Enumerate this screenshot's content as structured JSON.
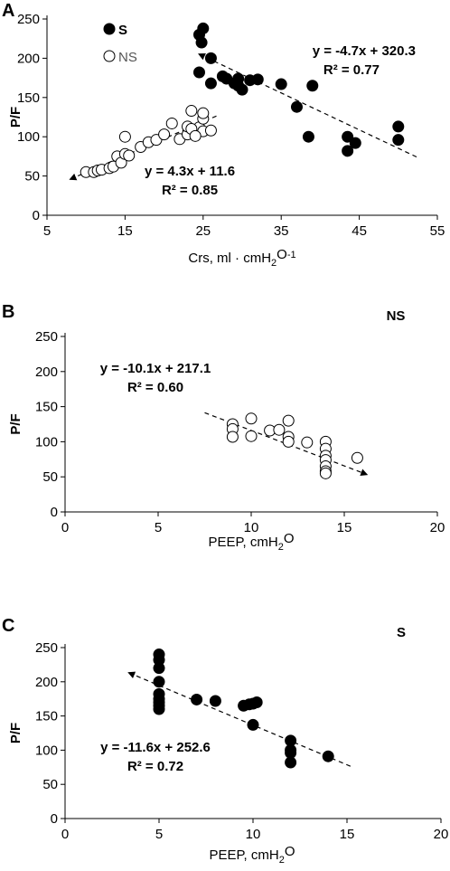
{
  "chart_data": [
    {
      "type": "scatter",
      "panel": "A",
      "ylabel": "P/F",
      "xlabel_parts": [
        "Crs, ml · cmH",
        "2",
        "O",
        "-1"
      ],
      "xlim": [
        5,
        55
      ],
      "ylim": [
        0,
        250
      ],
      "x_ticks": [
        "5",
        "15",
        "25",
        "35",
        "45",
        "55"
      ],
      "y_ticks": [
        "0",
        "50",
        "100",
        "150",
        "200",
        "250"
      ],
      "grid": false,
      "legend": [
        {
          "marker": "filled",
          "label": "S"
        },
        {
          "marker": "open",
          "label": "NS"
        }
      ],
      "legend_position": "top-left",
      "series": [
        {
          "name": "S",
          "marker": "filled",
          "points": [
            [
              25,
              238
            ],
            [
              24.5,
              230
            ],
            [
              24.8,
              220
            ],
            [
              26,
              200
            ],
            [
              24.5,
              182
            ],
            [
              26,
              168
            ],
            [
              27.5,
              177
            ],
            [
              28,
              174
            ],
            [
              29,
              168
            ],
            [
              29.5,
              165
            ],
            [
              30,
              160
            ],
            [
              31,
              172
            ],
            [
              32,
              173
            ],
            [
              35,
              167
            ],
            [
              37,
              138
            ],
            [
              38.5,
              100
            ],
            [
              39,
              165
            ],
            [
              43.5,
              82
            ],
            [
              43.5,
              100
            ],
            [
              44.5,
              92
            ],
            [
              50,
              113
            ],
            [
              50,
              96
            ],
            [
              29.5,
              174
            ]
          ]
        },
        {
          "name": "NS",
          "marker": "open",
          "points": [
            [
              10,
              55
            ],
            [
              11,
              55
            ],
            [
              11.5,
              57
            ],
            [
              12,
              58
            ],
            [
              13,
              60
            ],
            [
              13.5,
              62
            ],
            [
              14,
              75
            ],
            [
              14.5,
              67
            ],
            [
              15,
              78
            ],
            [
              15.5,
              76
            ],
            [
              15,
              100
            ],
            [
              17,
              87
            ],
            [
              18,
              93
            ],
            [
              19,
              96
            ],
            [
              20,
              103
            ],
            [
              21,
              117
            ],
            [
              22,
              97
            ],
            [
              23,
              103
            ],
            [
              23,
              113
            ],
            [
              23.5,
              133
            ],
            [
              24,
              105
            ],
            [
              24.5,
              112
            ],
            [
              25,
              123
            ],
            [
              25,
              107
            ],
            [
              25,
              130
            ],
            [
              26,
              108
            ],
            [
              23.5,
              110
            ],
            [
              24,
              101
            ]
          ]
        }
      ],
      "trendlines": [
        {
          "series": "S",
          "equation": "y = -4.7x + 320.3",
          "r2": "R² = 0.77",
          "slope": -4.7,
          "intercept": 320.3,
          "x_range": [
            24.5,
            52.5
          ]
        },
        {
          "series": "NS",
          "equation": "y = 4.3x + 11.6",
          "r2": "R² = 0.85",
          "slope": 4.3,
          "intercept": 11.6,
          "x_range": [
            8,
            27
          ]
        }
      ]
    },
    {
      "type": "scatter",
      "panel": "B",
      "group": "NS",
      "ylabel": "P/F",
      "xlabel_parts": [
        "PEEP, cmH",
        "2",
        "O",
        ""
      ],
      "xlim": [
        0,
        20
      ],
      "ylim": [
        0,
        250
      ],
      "x_ticks": [
        "0",
        "5",
        "10",
        "15",
        "20"
      ],
      "y_ticks": [
        "0",
        "50",
        "100",
        "150",
        "200",
        "250"
      ],
      "grid": false,
      "series": [
        {
          "name": "NS",
          "marker": "open",
          "points": [
            [
              9,
              125
            ],
            [
              9,
              118
            ],
            [
              9,
              107
            ],
            [
              10,
              133
            ],
            [
              10,
              108
            ],
            [
              11,
              116
            ],
            [
              11.5,
              117
            ],
            [
              12,
              130
            ],
            [
              12,
              107
            ],
            [
              12,
              100
            ],
            [
              13,
              99
            ],
            [
              14,
              100
            ],
            [
              14,
              90
            ],
            [
              14,
              80
            ],
            [
              14,
              74
            ],
            [
              14,
              65
            ],
            [
              14,
              58
            ],
            [
              14,
              55
            ],
            [
              15.7,
              77
            ]
          ]
        }
      ],
      "trendlines": [
        {
          "series": "NS",
          "equation": "y = -10.1x + 217.1",
          "r2": "R² = 0.60",
          "slope": -10.1,
          "intercept": 217.1,
          "x_range": [
            7.5,
            16.2
          ]
        }
      ]
    },
    {
      "type": "scatter",
      "panel": "C",
      "group": "S",
      "ylabel": "P/F",
      "xlabel_parts": [
        "PEEP, cmH",
        "2",
        "O",
        ""
      ],
      "xlim": [
        0,
        20
      ],
      "ylim": [
        0,
        250
      ],
      "x_ticks": [
        "0",
        "5",
        "10",
        "15",
        "20"
      ],
      "y_ticks": [
        "0",
        "50",
        "100",
        "150",
        "200",
        "250"
      ],
      "grid": false,
      "series": [
        {
          "name": "S",
          "marker": "filled",
          "points": [
            [
              5,
              240
            ],
            [
              5,
              232
            ],
            [
              5,
              220
            ],
            [
              5,
              200
            ],
            [
              5,
              182
            ],
            [
              5,
              175
            ],
            [
              5,
              170
            ],
            [
              5,
              165
            ],
            [
              5,
              160
            ],
            [
              7,
              174
            ],
            [
              8,
              172
            ],
            [
              9.5,
              165
            ],
            [
              9.8,
              167
            ],
            [
              10,
              168
            ],
            [
              10.2,
              170
            ],
            [
              10,
              137
            ],
            [
              12,
              114
            ],
            [
              12,
              100
            ],
            [
              12,
              96
            ],
            [
              12,
              82
            ],
            [
              14,
              91
            ]
          ]
        }
      ],
      "trendlines": [
        {
          "series": "S",
          "equation": "y = -11.6x + 252.6",
          "r2": "R² = 0.72",
          "slope": -11.6,
          "intercept": 252.6,
          "x_range": [
            3.4,
            15.3
          ]
        }
      ]
    }
  ]
}
